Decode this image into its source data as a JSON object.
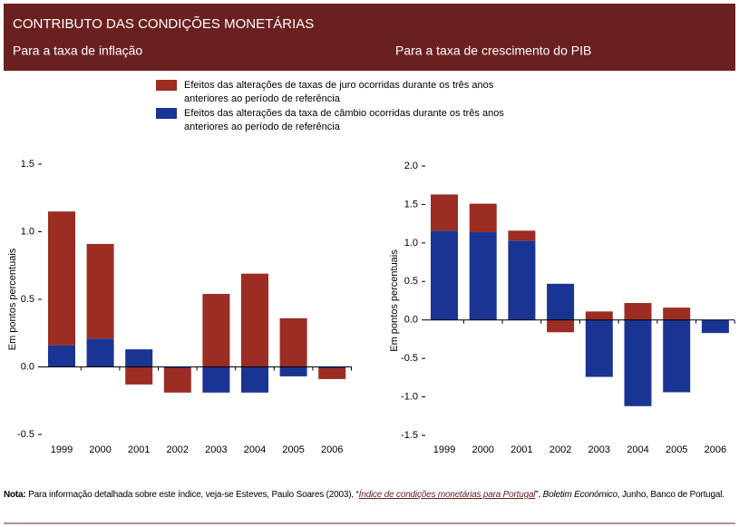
{
  "header": {
    "title": "CONTRIBUTO DAS CONDIÇÕES MONETÁRIAS"
  },
  "chart_data": [
    {
      "type": "bar",
      "stacked": true,
      "title": "Para a taxa de inflação",
      "y_label": "Em pontos percentuais",
      "categories": [
        "1999",
        "2000",
        "2001",
        "2002",
        "2003",
        "2004",
        "2005",
        "2006"
      ],
      "series": [
        {
          "name": "Efeitos das alterações de taxas de juro ocorridas durante os três anos anteriores ao período de referência",
          "color": "#9b2d22",
          "values": [
            0.99,
            0.7,
            -0.13,
            -0.18,
            0.54,
            0.69,
            0.36,
            -0.08
          ]
        },
        {
          "name": "Efeitos das alterações da taxa de câmbio ocorridas durante os três anos anteriores ao período de referência",
          "color": "#1a3494",
          "values": [
            0.16,
            0.21,
            0.13,
            -0.01,
            -0.19,
            -0.19,
            -0.07,
            -0.01
          ]
        }
      ],
      "ylim": [
        -0.5,
        1.5
      ],
      "yticks": [
        -0.5,
        {
          "value": 0,
          "label": "0.0"
        },
        0.5,
        {
          "value": 1,
          "label": "1.0"
        },
        1.5
      ]
    },
    {
      "type": "bar",
      "stacked": true,
      "title": "Para a taxa de crescimento do PIB",
      "y_label": "Em pontos percentuais",
      "categories": [
        "1999",
        "2000",
        "2001",
        "2002",
        "2003",
        "2004",
        "2005",
        "2006"
      ],
      "series": [
        {
          "color": "#9b2d22",
          "values": [
            0.47,
            0.37,
            0.13,
            -0.16,
            0.11,
            0.22,
            0.16,
            0
          ]
        },
        {
          "color": "#1a3494",
          "values": [
            1.16,
            1.14,
            1.03,
            0.47,
            -0.74,
            -1.12,
            -0.94,
            -0.17
          ]
        }
      ],
      "ylim": [
        -1.5,
        2
      ],
      "yticks": [
        {
          "value": -1.5,
          "label": "-1.5"
        },
        {
          "value": -1,
          "label": "-1.0"
        },
        -0.5,
        {
          "value": 0,
          "label": "0.0"
        },
        0.5,
        {
          "value": 1,
          "label": "1.0"
        },
        1.5,
        {
          "value": 2,
          "label": "2.0"
        }
      ]
    }
  ],
  "note": {
    "label": "Nota:",
    "text": " Para informação detalhada sobre este índice, veja-se Esteves, Paulo Soares (2003), “",
    "link": "Índice de condições monetárias para Portugal",
    "text2": "”, ",
    "journal": "Boletim Económico",
    "text3": ", Junho, Banco de Portugal."
  }
}
